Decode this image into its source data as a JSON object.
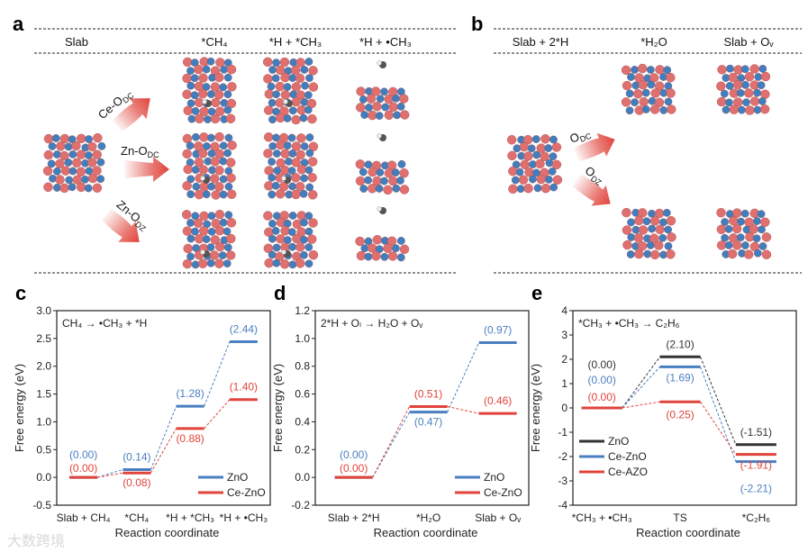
{
  "panels": {
    "a": {
      "letter": "a",
      "columns": [
        "Slab",
        "*CH₄",
        "*H + *CH₃",
        "*H + •CH₃"
      ],
      "arrows": [
        {
          "main": "Ce-O",
          "sub": "DC"
        },
        {
          "main": "Zn-O",
          "sub": "DC"
        },
        {
          "main": "Zn-O",
          "sub": "DZ"
        }
      ]
    },
    "b": {
      "letter": "b",
      "columns": [
        "Slab + 2*H",
        "*H₂O",
        "Slab + Oᵥ"
      ],
      "arrows": [
        {
          "main": "O",
          "sub": "DC"
        },
        {
          "main": "O",
          "sub": "DZ"
        }
      ]
    }
  },
  "colors": {
    "ZnO_bc": "#4a7fc1",
    "CeZnO_c": "#e0443c",
    "ZnO_e": "#333333",
    "CeZnO_e": "#4a7fc1",
    "CeAZO_e": "#e0443c",
    "oxygen": "#e07070",
    "zinc": "#3f7fc0"
  },
  "watermark": "大数跨境",
  "chart_data": [
    {
      "letter": "c",
      "type": "line",
      "title": "CH₄ → •CH₃ + *H",
      "xlabel": "Reaction coordinate",
      "ylabel": "Free energy (eV)",
      "ylim": [
        -0.5,
        3.0
      ],
      "yticks": [
        "-0.5",
        "0.0",
        "0.5",
        "1.0",
        "1.5",
        "2.0",
        "2.5",
        "3.0"
      ],
      "categories": [
        "Slab + CH₄",
        "*CH₄",
        "*H + *CH₃",
        "*H + •CH₃"
      ],
      "legend_position": "bottom-right",
      "series": [
        {
          "name": "ZnO",
          "color": "#4a7fc1",
          "values": [
            0.0,
            0.14,
            1.28,
            2.44
          ],
          "labels": [
            "(0.00)",
            "(0.14)",
            "(1.28)",
            "(2.44)"
          ]
        },
        {
          "name": "Ce-ZnO",
          "color": "#e0443c",
          "values": [
            0.0,
            0.08,
            0.88,
            1.4
          ],
          "labels": [
            "(0.00)",
            "(0.08)",
            "(0.88)",
            "(1.40)"
          ]
        }
      ]
    },
    {
      "letter": "d",
      "type": "line",
      "title": "2*H + Oₗ → H₂O + Oᵥ",
      "xlabel": "Reaction coordinate",
      "ylabel": "Free energy (eV)",
      "ylim": [
        -0.2,
        1.2
      ],
      "yticks": [
        "-0.2",
        "0.0",
        "0.2",
        "0.4",
        "0.6",
        "0.8",
        "1.0",
        "1.2"
      ],
      "categories": [
        "Slab + 2*H",
        "*H₂O",
        "Slab + Oᵥ"
      ],
      "legend_position": "bottom-right",
      "series": [
        {
          "name": "ZnO",
          "color": "#4a7fc1",
          "values": [
            0.0,
            0.47,
            0.97
          ],
          "labels": [
            "(0.00)",
            "(0.47)",
            "(0.97)"
          ]
        },
        {
          "name": "Ce-ZnO",
          "color": "#e0443c",
          "values": [
            0.0,
            0.51,
            0.46
          ],
          "labels": [
            "(0.00)",
            "(0.51)",
            "(0.46)"
          ]
        }
      ]
    },
    {
      "letter": "e",
      "type": "line",
      "title": "*CH₃ + •CH₃ → C₂H₆",
      "xlabel": "Reaction coordinate",
      "ylabel": "Free energy (eV)",
      "ylim": [
        -4,
        4
      ],
      "yticks": [
        "-4",
        "-3",
        "-2",
        "-1",
        "0",
        "1",
        "2",
        "3",
        "4"
      ],
      "categories": [
        "*CH₃ + •CH₃",
        "TS",
        "*C₂H₆"
      ],
      "legend_position": "bottom-left",
      "series": [
        {
          "name": "ZnO",
          "color": "#333333",
          "values": [
            0.0,
            2.1,
            -1.51
          ],
          "labels": [
            "(0.00)",
            "(2.10)",
            "(-1.51)"
          ]
        },
        {
          "name": "Ce-ZnO",
          "color": "#4a7fc1",
          "values": [
            0.0,
            1.69,
            -2.21
          ],
          "labels": [
            "(0.00)",
            "(1.69)",
            "(-2.21)"
          ]
        },
        {
          "name": "Ce-AZO",
          "color": "#e0443c",
          "values": [
            0.0,
            0.25,
            -1.91
          ],
          "labels": [
            "(0.00)",
            "(0.25)",
            "(-1.91)"
          ]
        }
      ]
    }
  ]
}
